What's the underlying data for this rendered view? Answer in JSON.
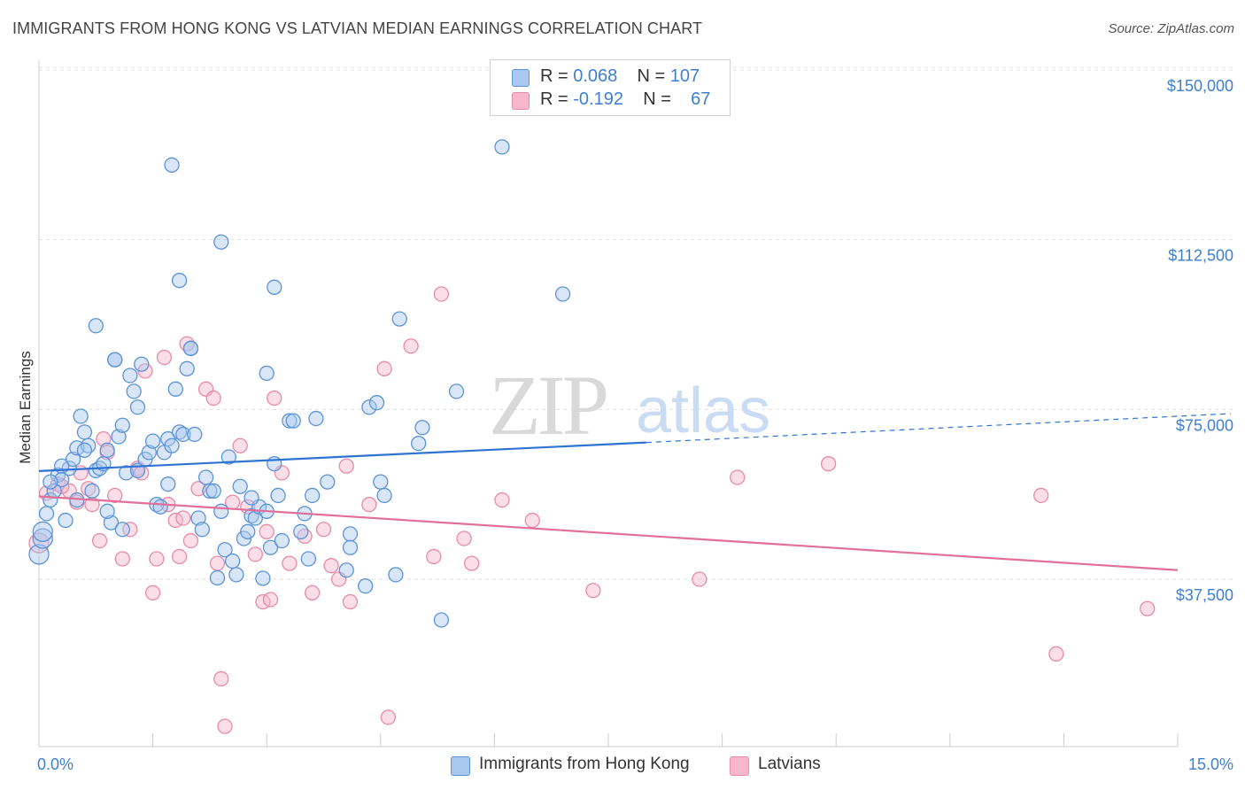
{
  "title": "IMMIGRANTS FROM HONG KONG VS LATVIAN MEDIAN EARNINGS CORRELATION CHART",
  "source": "Source: ZipAtlas.com",
  "watermark": {
    "zip": "ZIP",
    "atlas": "atlas"
  },
  "legend": {
    "rows": [
      {
        "r_label": "R = ",
        "r_value": "0.068",
        "n_label": "N = ",
        "n_value": "107",
        "color": "#a8c8f0"
      },
      {
        "r_label": "R = ",
        "r_value": "-0.192",
        "n_label": "N = ",
        "n_value": "67",
        "color": "#f7b6cb"
      }
    ]
  },
  "bottom_legend": [
    {
      "label": "Immigrants from Hong Kong",
      "color": "#a8c8f0"
    },
    {
      "label": "Latvians",
      "color": "#f7b6cb"
    }
  ],
  "chart_data": {
    "type": "scatter",
    "ylabel": "Median Earnings",
    "xlim": [
      0,
      15
    ],
    "ylim": [
      0,
      155000
    ],
    "x_tick_labels": [
      "0.0%",
      "15.0%"
    ],
    "y_ticks": [
      {
        "value": 37500,
        "label": "$37,500"
      },
      {
        "value": 75000,
        "label": "$75,000"
      },
      {
        "value": 112500,
        "label": "$112,500"
      },
      {
        "value": 150000,
        "label": "$150,000"
      }
    ],
    "grid": "horizontal dashed",
    "series": [
      {
        "name": "Immigrants from Hong Kong",
        "color": "#5b93d8",
        "fill": "#a8c8f0",
        "trend": {
          "x0": 0,
          "y0": 61400,
          "x1": 8,
          "y1": 67700,
          "dashed_to_x": 15,
          "dashed_to_y": 73500
        },
        "points": [
          [
            0.0,
            43000
          ],
          [
            0.05,
            46500
          ],
          [
            0.1,
            52000
          ],
          [
            0.15,
            55000
          ],
          [
            0.2,
            57000
          ],
          [
            0.25,
            60500
          ],
          [
            0.3,
            59500
          ],
          [
            0.35,
            50500
          ],
          [
            0.4,
            62000
          ],
          [
            0.45,
            64000
          ],
          [
            0.5,
            66500
          ],
          [
            0.55,
            73500
          ],
          [
            0.6,
            70000
          ],
          [
            0.65,
            67000
          ],
          [
            0.7,
            57000
          ],
          [
            0.75,
            61500
          ],
          [
            0.8,
            62000
          ],
          [
            0.85,
            63000
          ],
          [
            0.9,
            66000
          ],
          [
            0.95,
            50000
          ],
          [
            1.0,
            86000
          ],
          [
            1.05,
            69000
          ],
          [
            1.1,
            71500
          ],
          [
            1.15,
            61000
          ],
          [
            1.2,
            82500
          ],
          [
            1.25,
            79000
          ],
          [
            1.3,
            75500
          ],
          [
            1.35,
            85000
          ],
          [
            1.4,
            64000
          ],
          [
            1.45,
            65500
          ],
          [
            1.5,
            68000
          ],
          [
            1.55,
            54000
          ],
          [
            1.6,
            53500
          ],
          [
            1.65,
            65500
          ],
          [
            1.7,
            68500
          ],
          [
            1.75,
            67000
          ],
          [
            1.8,
            79500
          ],
          [
            1.85,
            70000
          ],
          [
            1.9,
            69500
          ],
          [
            1.95,
            84000
          ],
          [
            2.0,
            88500
          ],
          [
            2.05,
            69500
          ],
          [
            2.1,
            51000
          ],
          [
            2.15,
            48500
          ],
          [
            2.2,
            60000
          ],
          [
            2.25,
            57000
          ],
          [
            2.3,
            57000
          ],
          [
            2.35,
            37800
          ],
          [
            2.4,
            52500
          ],
          [
            2.45,
            44000
          ],
          [
            2.5,
            64500
          ],
          [
            2.55,
            41500
          ],
          [
            2.6,
            38500
          ],
          [
            2.65,
            58000
          ],
          [
            2.7,
            46500
          ],
          [
            2.75,
            48000
          ],
          [
            2.8,
            51500
          ],
          [
            2.85,
            51000
          ],
          [
            2.9,
            53500
          ],
          [
            2.95,
            37700
          ],
          [
            3.0,
            52500
          ],
          [
            3.05,
            44500
          ],
          [
            3.1,
            63000
          ],
          [
            3.15,
            56000
          ],
          [
            3.2,
            46000
          ],
          [
            3.3,
            72500
          ],
          [
            3.35,
            72500
          ],
          [
            3.45,
            48000
          ],
          [
            3.5,
            52000
          ],
          [
            3.55,
            42000
          ],
          [
            3.6,
            56000
          ],
          [
            3.65,
            73000
          ],
          [
            3.8,
            59000
          ],
          [
            4.05,
            39500
          ],
          [
            4.1,
            44500
          ],
          [
            4.1,
            47500
          ],
          [
            4.3,
            36000
          ],
          [
            4.35,
            75500
          ],
          [
            4.45,
            76500
          ],
          [
            4.5,
            59000
          ],
          [
            4.55,
            56000
          ],
          [
            4.7,
            38500
          ],
          [
            4.75,
            95000
          ],
          [
            5.0,
            67500
          ],
          [
            5.05,
            71000
          ],
          [
            5.3,
            28500
          ],
          [
            5.5,
            79000
          ],
          [
            6.1,
            133000
          ],
          [
            6.9,
            100500
          ],
          [
            1.75,
            129000
          ],
          [
            1.85,
            103500
          ],
          [
            2.4,
            112000
          ],
          [
            3.1,
            102000
          ],
          [
            0.75,
            93500
          ],
          [
            1.0,
            86000
          ],
          [
            2.0,
            88500
          ],
          [
            3.0,
            83000
          ],
          [
            0.9,
            52500
          ],
          [
            0.6,
            66000
          ],
          [
            1.3,
            61500
          ],
          [
            0.3,
            62500
          ],
          [
            0.15,
            59000
          ],
          [
            0.05,
            48000
          ],
          [
            0.5,
            55000
          ],
          [
            1.1,
            48500
          ],
          [
            1.7,
            58500
          ],
          [
            2.8,
            55500
          ]
        ]
      },
      {
        "name": "Latvians",
        "color": "#e88aa8",
        "fill": "#f7b6cb",
        "trend": {
          "x0": 0,
          "y0": 55800,
          "x1": 15,
          "y1": 39500
        },
        "points": [
          [
            0.0,
            45500
          ],
          [
            0.1,
            56500
          ],
          [
            0.25,
            58500
          ],
          [
            0.4,
            57000
          ],
          [
            0.5,
            54500
          ],
          [
            0.55,
            61000
          ],
          [
            0.65,
            57500
          ],
          [
            0.8,
            46000
          ],
          [
            0.85,
            68500
          ],
          [
            0.9,
            65500
          ],
          [
            1.1,
            42000
          ],
          [
            1.2,
            48500
          ],
          [
            1.3,
            62000
          ],
          [
            1.35,
            61000
          ],
          [
            1.4,
            83500
          ],
          [
            1.5,
            34500
          ],
          [
            1.55,
            42000
          ],
          [
            1.65,
            86500
          ],
          [
            1.7,
            54000
          ],
          [
            1.8,
            50500
          ],
          [
            1.85,
            42500
          ],
          [
            1.95,
            89500
          ],
          [
            2.0,
            46000
          ],
          [
            2.1,
            57500
          ],
          [
            2.2,
            79500
          ],
          [
            2.3,
            77500
          ],
          [
            2.35,
            41000
          ],
          [
            2.4,
            15500
          ],
          [
            2.45,
            5000
          ],
          [
            2.55,
            54500
          ],
          [
            2.65,
            67000
          ],
          [
            2.75,
            53500
          ],
          [
            2.85,
            43000
          ],
          [
            2.95,
            32500
          ],
          [
            3.05,
            33000
          ],
          [
            3.1,
            77500
          ],
          [
            3.2,
            61000
          ],
          [
            3.3,
            41000
          ],
          [
            3.5,
            47000
          ],
          [
            3.6,
            34500
          ],
          [
            3.75,
            48500
          ],
          [
            3.85,
            40500
          ],
          [
            3.95,
            37500
          ],
          [
            4.05,
            62500
          ],
          [
            4.1,
            32500
          ],
          [
            4.35,
            54000
          ],
          [
            4.55,
            84000
          ],
          [
            4.6,
            7000
          ],
          [
            4.9,
            89000
          ],
          [
            5.2,
            42500
          ],
          [
            5.3,
            100500
          ],
          [
            5.6,
            46500
          ],
          [
            5.7,
            41000
          ],
          [
            6.1,
            55000
          ],
          [
            6.5,
            50500
          ],
          [
            7.3,
            35000
          ],
          [
            8.7,
            37500
          ],
          [
            9.2,
            60000
          ],
          [
            10.4,
            63000
          ],
          [
            13.2,
            56000
          ],
          [
            13.4,
            21000
          ],
          [
            14.6,
            31000
          ],
          [
            0.3,
            58000
          ],
          [
            0.7,
            54000
          ],
          [
            1.0,
            56000
          ],
          [
            1.9,
            51000
          ],
          [
            3.0,
            48000
          ]
        ]
      }
    ]
  }
}
